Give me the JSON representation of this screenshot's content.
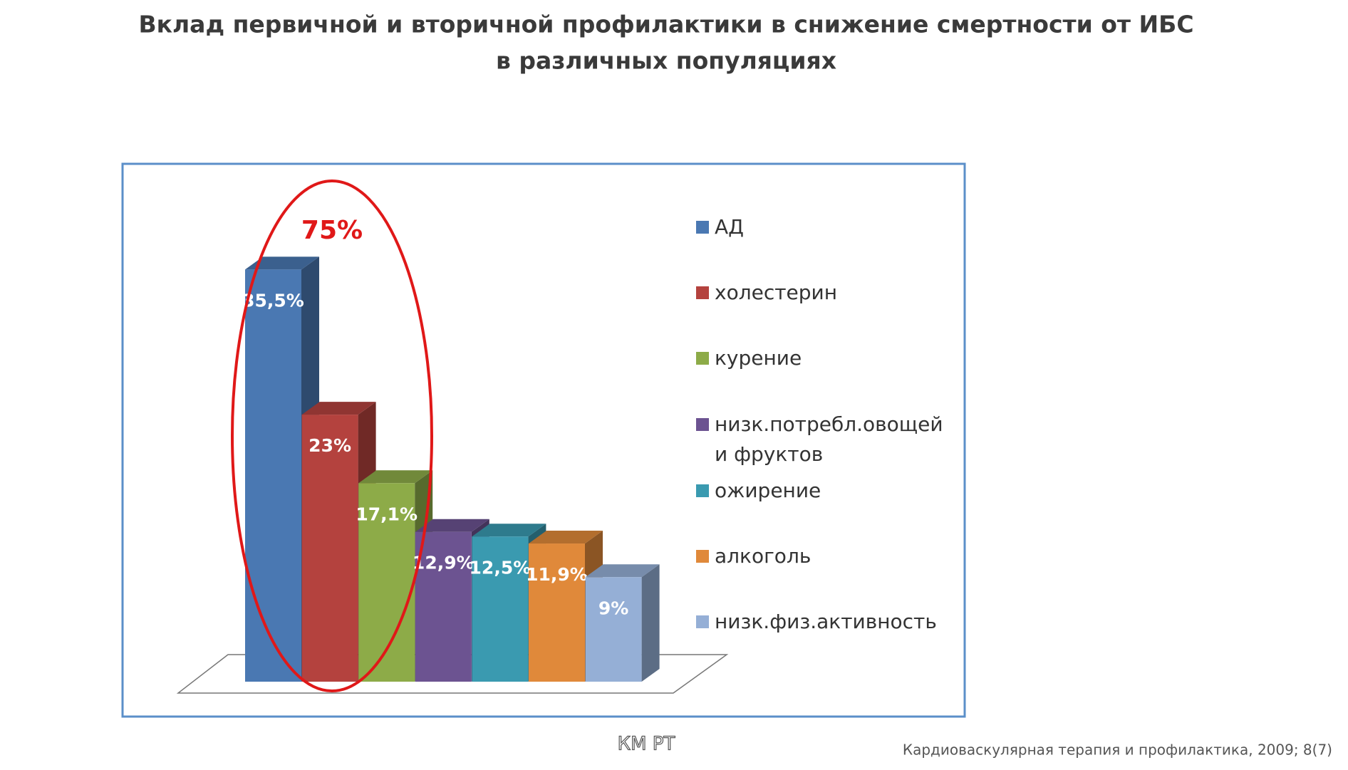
{
  "chart_data": {
    "type": "bar3d",
    "title": [
      "Вклад первичной и вторичной профилактики в снижение смертности от ИБС",
      "в различных популяциях"
    ],
    "categories": [
      null
    ],
    "series": [
      {
        "name": "АД",
        "color": "#4a78b2",
        "values": [
          35.5
        ],
        "value_labels": [
          "35,5%"
        ]
      },
      {
        "name": "холестерин",
        "color": "#b4423e",
        "values": [
          23
        ],
        "value_labels": [
          "23%"
        ]
      },
      {
        "name": "курение",
        "color": "#8dab48",
        "values": [
          17.1
        ],
        "value_labels": [
          "17,1%"
        ]
      },
      {
        "name": "низк.потребл.овощей и фруктов",
        "color": "#6c5391",
        "values": [
          12.9
        ],
        "value_labels": [
          "12,9%"
        ]
      },
      {
        "name": "ожирение",
        "color": "#3a9ab0",
        "values": [
          12.5
        ],
        "value_labels": [
          "12,5%"
        ]
      },
      {
        "name": "алкоголь",
        "color": "#e0893a",
        "values": [
          11.9
        ],
        "value_labels": [
          "11,9%"
        ]
      },
      {
        "name": "низк.физ.активность",
        "color": "#95afd6",
        "values": [
          9
        ],
        "value_labels": [
          "9%"
        ]
      }
    ],
    "annotation": "75%",
    "source": "Кардиоваскулярная терапия и профилактика, 2009; 8(7)",
    "watermark": "КМ РТ"
  }
}
